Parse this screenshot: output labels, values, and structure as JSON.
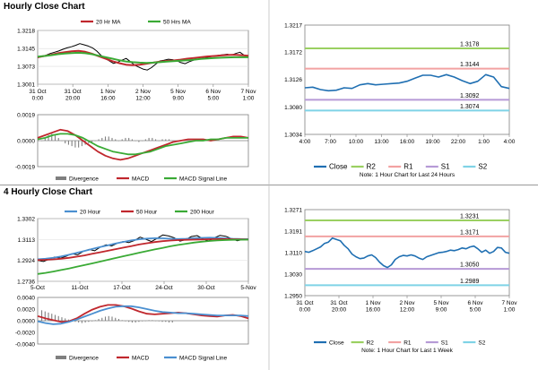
{
  "sections": {
    "hourly_title": "Hourly Close Chart",
    "four_hourly_title": "4 Hourly Close Chart"
  },
  "colors": {
    "price": "#000000",
    "ma_red": "#c0272d",
    "ma_green": "#3aaa35",
    "ma_blue": "#4a8fd0",
    "divergence": "#7f7f7f",
    "close": "#1f6fb2",
    "r2": "#9ad061",
    "r1": "#f2a2a2",
    "s1": "#b69ad6",
    "s2": "#7fd3e6",
    "zero_line": "#444444"
  },
  "chart_data": [
    {
      "id": "hourly_price",
      "type": "line",
      "title": "",
      "legend": [
        "20 Hr MA",
        "50 Hrs MA"
      ],
      "x_ticks": [
        "31 Oct\n0:00",
        "31 Oct\n20:00",
        "1 Nov\n16:00",
        "2 Nov\n12:00",
        "5 Nov\n9:00",
        "6 Nov\n5:00",
        "7 Nov\n1:00"
      ],
      "y_ticks": [
        1.3218,
        1.3145,
        1.3073,
        1.3001
      ],
      "ylim": [
        1.3001,
        1.3218
      ],
      "series": [
        {
          "name": "Price",
          "color_key": "price",
          "values": [
            1.3108,
            1.3112,
            1.3118,
            1.3125,
            1.313,
            1.3135,
            1.3142,
            1.3148,
            1.3152,
            1.3158,
            1.3165,
            1.316,
            1.3155,
            1.3148,
            1.3135,
            1.3118,
            1.3105,
            1.3095,
            1.3085,
            1.309,
            1.3098,
            1.3105,
            1.3092,
            1.3078,
            1.307,
            1.3062,
            1.3058,
            1.3068,
            1.3082,
            1.3095,
            1.3098,
            1.3102,
            1.31,
            1.3096,
            1.3088,
            1.3084,
            1.3092,
            1.3098,
            1.3102,
            1.3105,
            1.3108,
            1.3112,
            1.3115,
            1.3118,
            1.312,
            1.3122,
            1.3118,
            1.3125,
            1.313,
            1.3118,
            1.3112
          ]
        },
        {
          "name": "20 Hr MA",
          "color_key": "ma_red",
          "values": [
            1.311,
            1.3115,
            1.312,
            1.3126,
            1.313,
            1.3134,
            1.3136,
            1.3132,
            1.3124,
            1.3114,
            1.3104,
            1.3094,
            1.3086,
            1.308,
            1.3078,
            1.308,
            1.3084,
            1.3088,
            1.3092,
            1.3095,
            1.3097,
            1.31,
            1.3104,
            1.3107,
            1.311,
            1.3113,
            1.3115,
            1.3117,
            1.3119,
            1.312,
            1.3118,
            1.3116
          ]
        },
        {
          "name": "50 Hrs MA",
          "color_key": "ma_green",
          "values": [
            1.3112,
            1.3115,
            1.3118,
            1.3122,
            1.3125,
            1.3127,
            1.3128,
            1.3126,
            1.3122,
            1.3116,
            1.311,
            1.3104,
            1.3098,
            1.3093,
            1.309,
            1.3088,
            1.3087,
            1.3088,
            1.309,
            1.3092,
            1.3094,
            1.3096,
            1.3098,
            1.31,
            1.3103,
            1.3105,
            1.3107,
            1.3108,
            1.3109,
            1.311,
            1.311,
            1.311
          ]
        }
      ]
    },
    {
      "id": "hourly_macd",
      "type": "line",
      "title": "",
      "legend": [
        "Divergence",
        "MACD",
        "MACD Signal Line"
      ],
      "y_ticks": [
        0.0019,
        0.0,
        -0.0019
      ],
      "ylim": [
        -0.0019,
        0.0019
      ],
      "divergence": [
        0.0,
        0.0002,
        0.0004,
        0.0005,
        0.0004,
        0.0002,
        0.0,
        -0.0002,
        -0.0003,
        -0.0004,
        -0.0005,
        -0.0005,
        -0.0004,
        -0.0003,
        -0.0002,
        -0.0001,
        0.0,
        0.0001,
        0.0002,
        0.0003,
        0.0003,
        0.0002,
        0.0001,
        0.0,
        0.0001,
        0.0002,
        0.0002,
        0.0001,
        0.0,
        -0.0001,
        0.0,
        0.0001,
        0.0002,
        0.0002,
        0.0001,
        0.0,
        0.0001,
        0.0001,
        0.0001,
        0.0
      ],
      "series": [
        {
          "name": "MACD",
          "color_key": "ma_red",
          "values": [
            0.0002,
            0.0004,
            0.0006,
            0.0008,
            0.0007,
            0.0004,
            0.0,
            -0.0004,
            -0.0008,
            -0.0011,
            -0.0013,
            -0.0014,
            -0.0013,
            -0.0011,
            -0.0009,
            -0.0007,
            -0.0005,
            -0.0003,
            -0.0001,
            0.0,
            0.0001,
            0.0001,
            0.0001,
            0.0,
            0.0001,
            0.0002,
            0.0003,
            0.0003,
            0.0002
          ]
        },
        {
          "name": "MACD Signal Line",
          "color_key": "ma_green",
          "values": [
            0.0001,
            0.0002,
            0.0004,
            0.0005,
            0.0005,
            0.0004,
            0.0002,
            -0.0001,
            -0.0004,
            -0.0006,
            -0.0008,
            -0.0009,
            -0.001,
            -0.001,
            -0.0009,
            -0.0008,
            -0.0006,
            -0.0004,
            -0.0003,
            -0.0002,
            -0.0001,
            0.0,
            0.0,
            0.0001,
            0.0001,
            0.0002,
            0.0002,
            0.0002,
            0.0002
          ]
        }
      ]
    },
    {
      "id": "hourly_close",
      "type": "line",
      "title": "",
      "legend": [
        "Close",
        "R2",
        "R1",
        "S1",
        "S2"
      ],
      "note": "Note: 1 Hour Chart for Last 24 Hours",
      "x_ticks": [
        "4:00",
        "7:00",
        "10:00",
        "13:00",
        "16:00",
        "19:00",
        "22:00",
        "1:00",
        "4:00"
      ],
      "y_ticks": [
        1.3217,
        1.3172,
        1.3126,
        1.308,
        1.3034
      ],
      "ylim": [
        1.3034,
        1.3217
      ],
      "levels": [
        {
          "name": "R2",
          "value": 1.3178,
          "label": "1.3178",
          "color_key": "r2"
        },
        {
          "name": "R1",
          "value": 1.3144,
          "label": "1.3144",
          "color_key": "r1"
        },
        {
          "name": "S1",
          "value": 1.3092,
          "label": "1.3092",
          "color_key": "s1"
        },
        {
          "name": "S2",
          "value": 1.3074,
          "label": "1.3074",
          "color_key": "s2"
        }
      ],
      "series": [
        {
          "name": "Close",
          "color_key": "close",
          "values": [
            1.3112,
            1.3113,
            1.3109,
            1.3107,
            1.3108,
            1.3112,
            1.3111,
            1.3117,
            1.3119,
            1.3117,
            1.3118,
            1.3119,
            1.312,
            1.3123,
            1.3128,
            1.3133,
            1.3133,
            1.313,
            1.3134,
            1.313,
            1.3124,
            1.3119,
            1.3123,
            1.3134,
            1.313,
            1.3114,
            1.3111
          ]
        }
      ]
    },
    {
      "id": "four_hourly_price",
      "type": "line",
      "title": "",
      "legend": [
        "20 Hour",
        "50 Hour",
        "200 Hour"
      ],
      "x_ticks": [
        "5-Oct",
        "11-Oct",
        "17-Oct",
        "24-Oct",
        "30-Oct",
        "5-Nov"
      ],
      "y_ticks": [
        1.3302,
        1.3113,
        1.2924,
        1.2736
      ],
      "ylim": [
        1.2736,
        1.3302
      ],
      "series": [
        {
          "name": "Price",
          "color_key": "price",
          "values": [
            1.2925,
            1.2915,
            1.2935,
            1.2955,
            1.2945,
            1.2962,
            1.2985,
            1.2975,
            1.3005,
            1.3025,
            1.3012,
            1.3045,
            1.3065,
            1.3055,
            1.308,
            1.3095,
            1.3085,
            1.3105,
            1.3135,
            1.3115,
            1.3095,
            1.3125,
            1.3155,
            1.3145,
            1.3128,
            1.3098,
            1.3112,
            1.314,
            1.3148,
            1.312,
            1.31,
            1.3128,
            1.315,
            1.3143,
            1.3122,
            1.3102,
            1.3112,
            1.3118
          ]
        },
        {
          "name": "20 Hour",
          "color_key": "ma_blue",
          "values": [
            1.2935,
            1.294,
            1.2948,
            1.296,
            1.2975,
            1.2992,
            1.301,
            1.3028,
            1.3045,
            1.306,
            1.3078,
            1.3092,
            1.3105,
            1.3115,
            1.3122,
            1.3125,
            1.3124,
            1.312,
            1.3118,
            1.312,
            1.3125,
            1.3128,
            1.313,
            1.3128,
            1.3124,
            1.312,
            1.3118,
            1.3117
          ]
        },
        {
          "name": "50 Hour",
          "color_key": "ma_red",
          "values": [
            1.2928,
            1.293,
            1.2934,
            1.294,
            1.2948,
            1.2958,
            1.297,
            1.2984,
            1.2998,
            1.3012,
            1.3026,
            1.304,
            1.3054,
            1.3068,
            1.308,
            1.309,
            1.3098,
            1.3104,
            1.3108,
            1.311,
            1.3112,
            1.3114,
            1.3116,
            1.3117,
            1.3117,
            1.3116,
            1.3115,
            1.3114
          ]
        },
        {
          "name": "200 Hour",
          "color_key": "ma_green",
          "values": [
            1.2802,
            1.2812,
            1.2824,
            1.2838,
            1.2852,
            1.2867,
            1.2882,
            1.2898,
            1.2914,
            1.293,
            1.2946,
            1.2962,
            1.2978,
            1.2994,
            1.3009,
            1.3024,
            1.3038,
            1.3052,
            1.3064,
            1.3075,
            1.3085,
            1.3093,
            1.31,
            1.3105,
            1.3108,
            1.311,
            1.3111,
            1.3112
          ]
        }
      ]
    },
    {
      "id": "four_hourly_macd",
      "type": "line",
      "title": "",
      "legend": [
        "Divergence",
        "MACD",
        "MACD Signal Line"
      ],
      "y_ticks": [
        0.004,
        0.002,
        0.0,
        -0.002,
        -0.004
      ],
      "y_tick_labels": [
        "0.0040",
        "0.0020",
        "0.0000",
        "-0.0020",
        "-0.0040"
      ],
      "ylim": [
        -0.004,
        0.004
      ],
      "divergence": [
        0.0018,
        0.0016,
        0.0014,
        0.0012,
        0.001,
        0.0008,
        0.0006,
        0.0004,
        0.0002,
        0.0,
        -0.0002,
        -0.0003,
        -0.0004,
        -0.0003,
        -0.0002,
        -0.0001,
        0.0001,
        0.0003,
        0.0005,
        0.0007,
        0.0008,
        0.0007,
        0.0005,
        0.0003,
        0.0001,
        -0.0001,
        -0.0002,
        -0.0003,
        -0.0003,
        -0.0002,
        -0.0001,
        0.0,
        0.0001,
        0.0001,
        0.0,
        -0.0001,
        -0.0002,
        -0.0002,
        -0.0003,
        -0.0003
      ],
      "series": [
        {
          "name": "MACD",
          "color_key": "ma_red",
          "values": [
            0.0008,
            0.0004,
            0.0001,
            -0.0002,
            -0.0001,
            0.0004,
            0.0012,
            0.0019,
            0.0024,
            0.0027,
            0.0027,
            0.0025,
            0.0021,
            0.0016,
            0.0012,
            0.0011,
            0.0012,
            0.0013,
            0.0014,
            0.0013,
            0.0011,
            0.0009,
            0.0008,
            0.0007,
            0.0009,
            0.001,
            0.0008,
            0.0004
          ]
        },
        {
          "name": "MACD Signal Line",
          "color_key": "ma_blue",
          "values": [
            -0.0001,
            -0.0004,
            -0.0006,
            -0.0005,
            -0.0002,
            0.0002,
            0.0007,
            0.0012,
            0.0017,
            0.0021,
            0.0024,
            0.0025,
            0.0025,
            0.0023,
            0.002,
            0.0017,
            0.0015,
            0.0014,
            0.0013,
            0.0013,
            0.0012,
            0.0011,
            0.001,
            0.0009,
            0.0009,
            0.0009,
            0.0009,
            0.0008
          ]
        }
      ]
    },
    {
      "id": "weekly_close",
      "type": "line",
      "title": "",
      "legend": [
        "Close",
        "R2",
        "R1",
        "S1",
        "S2"
      ],
      "note": "Note: 1 Hour Chart for Last 1 Week",
      "x_ticks": [
        "31 Oct\n0:00",
        "31 Oct\n20:00",
        "1 Nov\n16:00",
        "2 Nov\n12:00",
        "5 Nov\n9:00",
        "6 Nov\n5:00",
        "7 Nov\n1:00"
      ],
      "y_ticks": [
        1.3271,
        1.3191,
        1.311,
        1.303,
        1.295
      ],
      "y_tick_labels": [
        "1.3271",
        "1.3191",
        "1.3110",
        "1.3030",
        "1.2950"
      ],
      "ylim": [
        1.295,
        1.3271
      ],
      "levels": [
        {
          "name": "R2",
          "value": 1.3231,
          "label": "1.3231",
          "color_key": "r2"
        },
        {
          "name": "R1",
          "value": 1.3171,
          "label": "1.3171",
          "color_key": "r1"
        },
        {
          "name": "S1",
          "value": 1.305,
          "label": "1.3050",
          "color_key": "s1"
        },
        {
          "name": "S2",
          "value": 1.2989,
          "label": "1.2989",
          "color_key": "s2"
        }
      ],
      "series": [
        {
          "name": "Close",
          "color_key": "close",
          "values": [
            1.3115,
            1.3112,
            1.3118,
            1.3125,
            1.3132,
            1.3145,
            1.315,
            1.3165,
            1.316,
            1.3155,
            1.3138,
            1.3125,
            1.3105,
            1.3095,
            1.3088,
            1.309,
            1.3098,
            1.3102,
            1.3092,
            1.3075,
            1.3062,
            1.3055,
            1.3065,
            1.3085,
            1.3095,
            1.31,
            1.3098,
            1.3102,
            1.3098,
            1.309,
            1.3085,
            1.3095,
            1.31,
            1.3105,
            1.311,
            1.3112,
            1.3115,
            1.312,
            1.3118,
            1.3122,
            1.3128,
            1.3125,
            1.3132,
            1.3135,
            1.3125,
            1.3112,
            1.312,
            1.3108,
            1.3115,
            1.313,
            1.3128,
            1.3112,
            1.3108
          ]
        }
      ]
    }
  ]
}
